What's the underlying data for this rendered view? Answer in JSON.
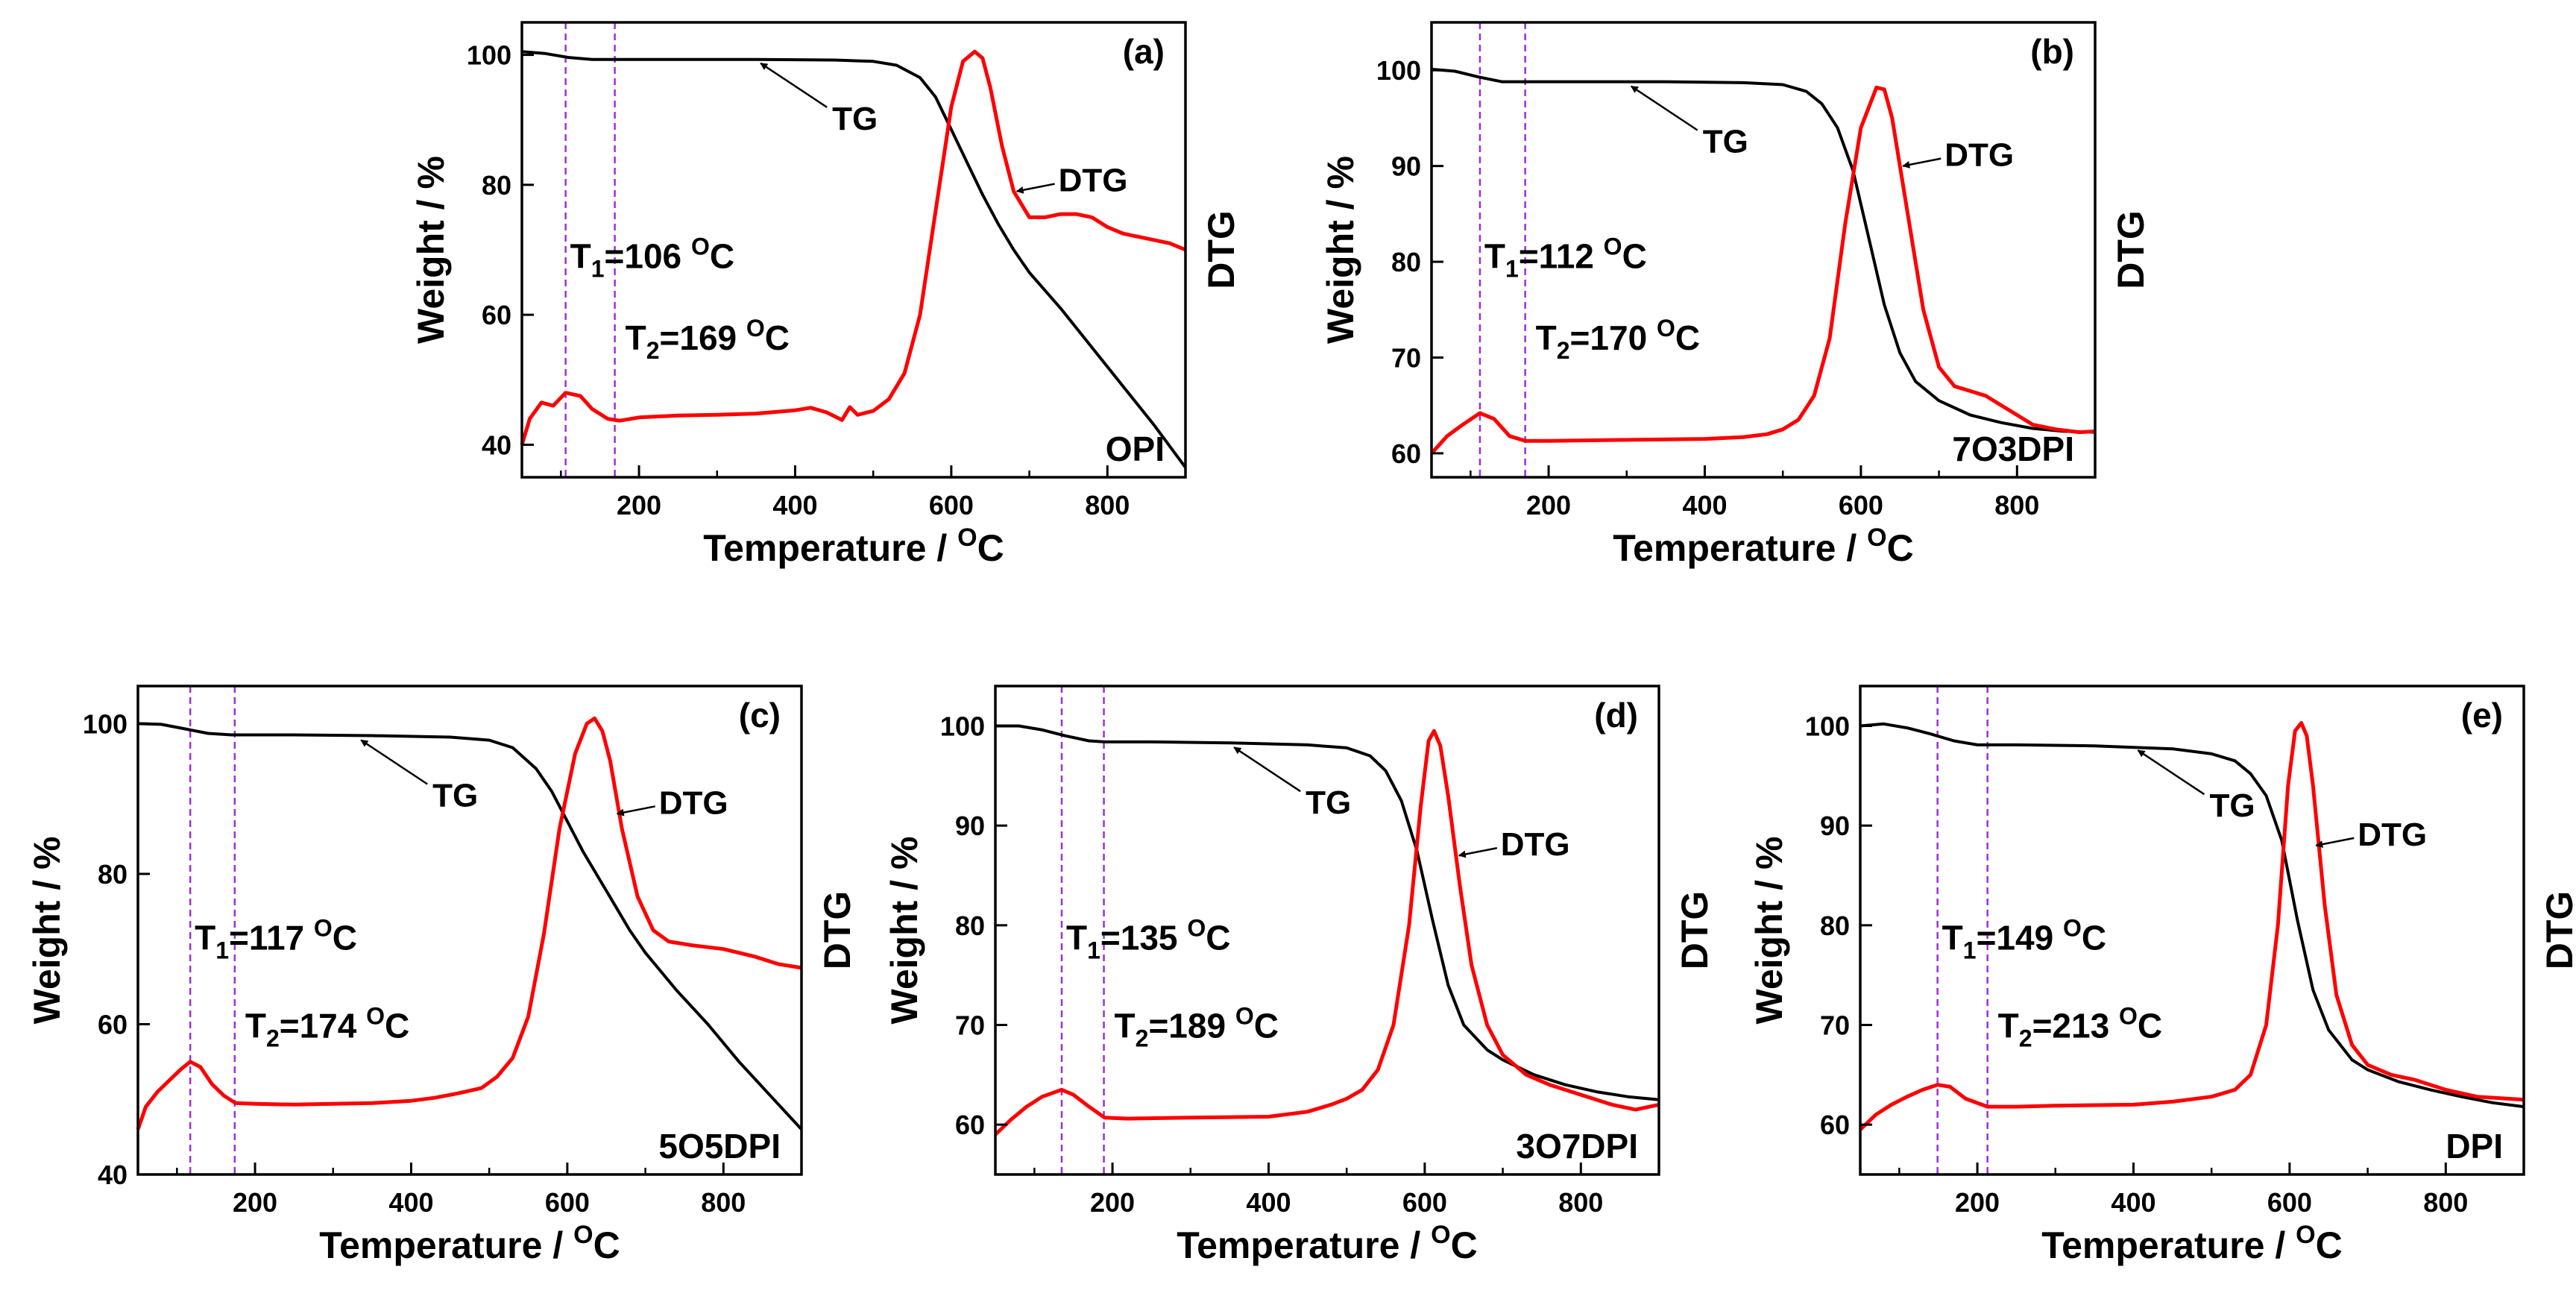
{
  "figure": {
    "panel_count": 5,
    "colors": {
      "tg": "#000000",
      "dtg": "#ff0000",
      "marker": "#9b30d9",
      "axis": "#000000"
    }
  },
  "chart_data": [
    {
      "type": "line",
      "panel": "(a)",
      "sample": "OPI",
      "xlabel": "Temperature / ",
      "xlabel_sup": "O",
      "xlabel_unit": "C",
      "ylabel": "Weight / %",
      "y2label": "DTG",
      "xlim": [
        50,
        900
      ],
      "ylim": [
        35,
        105
      ],
      "xticks": [
        200,
        400,
        600,
        800
      ],
      "yticks": [
        40,
        60,
        80,
        100
      ],
      "markers": [
        106,
        169
      ],
      "t1": {
        "sym": "T",
        "sub": "1",
        "val": "=106 ",
        "sup": "O",
        "unit": "C"
      },
      "t2": {
        "sym": "T",
        "sub": "2",
        "val": "=169 ",
        "sup": "O",
        "unit": "C"
      },
      "tg_label": "TG",
      "dtg_label": "DTG",
      "series": [
        {
          "name": "TG",
          "x": [
            50,
            80,
            110,
            140,
            170,
            250,
            350,
            450,
            500,
            530,
            560,
            580,
            600,
            620,
            640,
            660,
            680,
            700,
            740,
            780,
            820,
            860,
            900
          ],
          "y": [
            100.5,
            100.2,
            99.6,
            99.3,
            99.3,
            99.3,
            99.3,
            99.2,
            99.0,
            98.4,
            96.5,
            93.5,
            88.5,
            83.5,
            78.5,
            74,
            70,
            66.5,
            61,
            55,
            49,
            43,
            36.5
          ]
        },
        {
          "name": "DTG",
          "x": [
            50,
            60,
            75,
            90,
            106,
            125,
            140,
            160,
            175,
            200,
            250,
            300,
            350,
            400,
            420,
            440,
            460,
            470,
            480,
            500,
            520,
            540,
            560,
            580,
            600,
            615,
            630,
            640,
            650,
            665,
            680,
            700,
            720,
            740,
            760,
            780,
            800,
            820,
            840,
            860,
            880,
            900
          ],
          "y": [
            40,
            44,
            46.5,
            46,
            48,
            47.5,
            45.5,
            44,
            43.7,
            44.2,
            44.5,
            44.6,
            44.8,
            45.3,
            45.7,
            45,
            43.8,
            45.8,
            44.6,
            45.2,
            47,
            51,
            60,
            76,
            92,
            99,
            100.5,
            99.5,
            95,
            86,
            79,
            75,
            75,
            75.5,
            75.5,
            75,
            73.5,
            72.5,
            72,
            71.5,
            71,
            70
          ]
        }
      ],
      "annotations": {
        "tg_arrow": [
          350,
          99.4
        ],
        "dtg_arrow": [
          680,
          79
        ]
      }
    },
    {
      "type": "line",
      "panel": "(b)",
      "sample": "7O3DPI",
      "xlabel": "Temperature / ",
      "xlabel_sup": "O",
      "xlabel_unit": "C",
      "ylabel": "Weight / %",
      "y2label": "DTG",
      "xlim": [
        50,
        900
      ],
      "ylim": [
        57.5,
        105
      ],
      "xticks": [
        200,
        400,
        600,
        800
      ],
      "yticks": [
        60,
        70,
        80,
        90,
        100
      ],
      "markers": [
        112,
        170
      ],
      "t1": {
        "sym": "T",
        "sub": "1",
        "val": "=112 ",
        "sup": "O",
        "unit": "C"
      },
      "t2": {
        "sym": "T",
        "sub": "2",
        "val": "=170 ",
        "sup": "O",
        "unit": "C"
      },
      "tg_label": "TG",
      "dtg_label": "DTG",
      "series": [
        {
          "name": "TG",
          "x": [
            50,
            80,
            110,
            140,
            170,
            250,
            350,
            450,
            500,
            530,
            550,
            570,
            590,
            610,
            630,
            650,
            670,
            700,
            740,
            780,
            820,
            860,
            900
          ],
          "y": [
            100.1,
            99.9,
            99.3,
            98.8,
            98.8,
            98.8,
            98.8,
            98.7,
            98.5,
            97.8,
            96.5,
            94,
            89.5,
            82.5,
            75.5,
            70.5,
            67.5,
            65.5,
            64,
            63.2,
            62.6,
            62.3,
            62.2
          ]
        },
        {
          "name": "DTG",
          "x": [
            50,
            70,
            90,
            112,
            130,
            150,
            170,
            200,
            300,
            400,
            450,
            480,
            500,
            520,
            540,
            560,
            580,
            600,
            620,
            630,
            640,
            660,
            680,
            700,
            720,
            740,
            760,
            780,
            800,
            820,
            850,
            880,
            900
          ],
          "y": [
            60,
            61.8,
            63,
            64.2,
            63.6,
            61.8,
            61.3,
            61.3,
            61.4,
            61.5,
            61.7,
            62,
            62.5,
            63.5,
            66,
            72,
            84,
            94,
            98.2,
            98,
            95,
            85,
            75,
            69,
            67,
            66.5,
            66,
            65,
            64,
            63,
            62.5,
            62.2,
            62.3
          ]
        }
      ],
      "annotations": {
        "tg_arrow": [
          300,
          98.8
        ],
        "dtg_arrow": [
          650,
          90
        ]
      }
    },
    {
      "type": "line",
      "panel": "(c)",
      "sample": "5O5DPI",
      "xlabel": "Temperature / ",
      "xlabel_sup": "O",
      "xlabel_unit": "C",
      "ylabel": "Weight / %",
      "y2label": "DTG",
      "xlim": [
        50,
        900
      ],
      "ylim": [
        40,
        105
      ],
      "xticks": [
        200,
        400,
        600,
        800
      ],
      "yticks": [
        40,
        60,
        80,
        100
      ],
      "markers": [
        117,
        174
      ],
      "t1": {
        "sym": "T",
        "sub": "1",
        "val": "=117 ",
        "sup": "O",
        "unit": "C"
      },
      "t2": {
        "sym": "T",
        "sub": "2",
        "val": "=174 ",
        "sup": "O",
        "unit": "C"
      },
      "tg_label": "TG",
      "dtg_label": "DTG",
      "series": [
        {
          "name": "TG",
          "x": [
            50,
            80,
            110,
            140,
            170,
            250,
            350,
            450,
            500,
            530,
            560,
            580,
            600,
            620,
            640,
            660,
            680,
            700,
            740,
            780,
            820,
            860,
            900
          ],
          "y": [
            100,
            99.9,
            99.3,
            98.7,
            98.5,
            98.5,
            98.4,
            98.2,
            97.8,
            96.8,
            94,
            91,
            87,
            83,
            79.5,
            76,
            72.5,
            69.5,
            64.5,
            60,
            55,
            50.5,
            46
          ]
        },
        {
          "name": "DTG",
          "x": [
            50,
            60,
            75,
            90,
            105,
            117,
            130,
            145,
            160,
            175,
            200,
            250,
            300,
            350,
            400,
            430,
            460,
            490,
            510,
            530,
            550,
            570,
            590,
            610,
            625,
            635,
            645,
            655,
            670,
            690,
            710,
            730,
            760,
            800,
            840,
            870,
            900
          ],
          "y": [
            46,
            49,
            51,
            52.5,
            54,
            55,
            54.3,
            52,
            50.5,
            49.5,
            49.4,
            49.3,
            49.4,
            49.5,
            49.8,
            50.2,
            50.8,
            51.5,
            53,
            55.5,
            61,
            72,
            86,
            96,
            100,
            100.7,
            99,
            95,
            86,
            77,
            72.5,
            71,
            70.5,
            70,
            69,
            68,
            67.5
          ]
        }
      ],
      "annotations": {
        "tg_arrow": [
          330,
          98.4
        ],
        "dtg_arrow": [
          660,
          88
        ]
      }
    },
    {
      "type": "line",
      "panel": "(d)",
      "sample": "3O7DPI",
      "xlabel": "Temperature / ",
      "xlabel_sup": "O",
      "xlabel_unit": "C",
      "ylabel": "Weight / %",
      "y2label": "DTG",
      "xlim": [
        50,
        900
      ],
      "ylim": [
        55,
        104
      ],
      "xticks": [
        200,
        400,
        600,
        800
      ],
      "yticks": [
        60,
        70,
        80,
        90,
        100
      ],
      "markers": [
        135,
        189
      ],
      "t1": {
        "sym": "T",
        "sub": "1",
        "val": "=135 ",
        "sup": "O",
        "unit": "C"
      },
      "t2": {
        "sym": "T",
        "sub": "2",
        "val": "=189 ",
        "sup": "O",
        "unit": "C"
      },
      "tg_label": "TG",
      "dtg_label": "DTG",
      "series": [
        {
          "name": "TG",
          "x": [
            50,
            80,
            110,
            140,
            170,
            190,
            250,
            350,
            450,
            500,
            530,
            550,
            570,
            590,
            610,
            630,
            650,
            680,
            700,
            740,
            780,
            820,
            860,
            900
          ],
          "y": [
            100,
            100,
            99.6,
            99,
            98.5,
            98.4,
            98.4,
            98.3,
            98.1,
            97.8,
            97,
            95.5,
            92.5,
            87.5,
            80.5,
            74,
            70,
            67.5,
            66.5,
            65,
            64,
            63.3,
            62.8,
            62.5
          ]
        },
        {
          "name": "DTG",
          "x": [
            50,
            70,
            90,
            110,
            135,
            150,
            170,
            190,
            220,
            300,
            400,
            450,
            480,
            500,
            520,
            540,
            560,
            580,
            595,
            605,
            612,
            620,
            630,
            645,
            660,
            680,
            700,
            730,
            760,
            800,
            840,
            870,
            900
          ],
          "y": [
            59,
            60.5,
            61.8,
            62.8,
            63.5,
            63,
            61.8,
            60.7,
            60.6,
            60.7,
            60.8,
            61.3,
            62,
            62.6,
            63.5,
            65.5,
            70,
            80,
            92,
            98.5,
            99.5,
            98,
            93,
            84,
            76,
            70,
            67,
            65,
            64,
            63,
            62,
            61.5,
            62
          ]
        }
      ],
      "annotations": {
        "tg_arrow": [
          350,
          98.3
        ],
        "dtg_arrow": [
          640,
          87
        ]
      }
    },
    {
      "type": "line",
      "panel": "(e)",
      "sample": "DPI",
      "xlabel": "Temperature / ",
      "xlabel_sup": "O",
      "xlabel_unit": "C",
      "ylabel": "Weight / %",
      "y2label": "DTG",
      "xlim": [
        50,
        900
      ],
      "ylim": [
        55,
        104
      ],
      "xticks": [
        200,
        400,
        600,
        800
      ],
      "yticks": [
        60,
        70,
        80,
        90,
        100
      ],
      "markers": [
        149,
        213
      ],
      "t1": {
        "sym": "T",
        "sub": "1",
        "val": "=149 ",
        "sup": "O",
        "unit": "C"
      },
      "t2": {
        "sym": "T",
        "sub": "2",
        "val": "=213 ",
        "sup": "O",
        "unit": "C"
      },
      "tg_label": "TG",
      "dtg_label": "DTG",
      "series": [
        {
          "name": "TG",
          "x": [
            50,
            80,
            110,
            140,
            170,
            200,
            250,
            350,
            450,
            500,
            530,
            550,
            570,
            590,
            610,
            630,
            650,
            680,
            700,
            740,
            780,
            820,
            860,
            900
          ],
          "y": [
            100,
            100.2,
            99.8,
            99.2,
            98.5,
            98.1,
            98.1,
            98,
            97.7,
            97.2,
            96.5,
            95.2,
            93,
            88.5,
            80.5,
            73.5,
            69.5,
            66.5,
            65.5,
            64.3,
            63.5,
            62.8,
            62.2,
            61.8
          ]
        },
        {
          "name": "DTG",
          "x": [
            50,
            70,
            90,
            110,
            130,
            149,
            165,
            185,
            213,
            250,
            300,
            400,
            450,
            500,
            530,
            550,
            570,
            585,
            598,
            607,
            615,
            622,
            630,
            645,
            660,
            680,
            700,
            730,
            760,
            800,
            840,
            880,
            900
          ],
          "y": [
            59.5,
            61,
            62,
            62.8,
            63.5,
            64,
            63.8,
            62.6,
            61.8,
            61.8,
            61.9,
            62,
            62.3,
            62.8,
            63.5,
            65,
            70,
            80,
            94,
            99.5,
            100.3,
            99,
            94,
            82,
            73,
            68,
            66,
            65,
            64.5,
            63.5,
            62.8,
            62.6,
            62.5
          ]
        }
      ],
      "annotations": {
        "tg_arrow": [
          400,
          98
        ],
        "dtg_arrow": [
          630,
          88
        ]
      }
    }
  ]
}
